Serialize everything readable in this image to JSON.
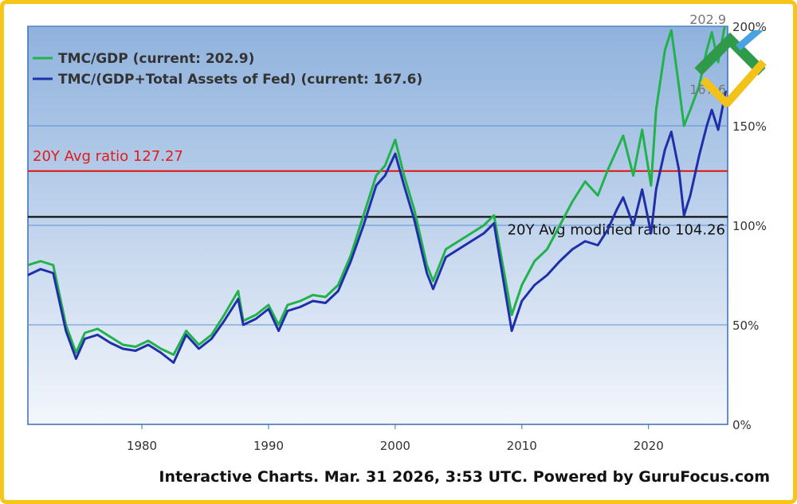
{
  "chart_data": {
    "type": "line",
    "xlabel": "",
    "ylabel": "",
    "xlim": [
      1971,
      2026.25
    ],
    "ylim": [
      0,
      200
    ],
    "x_ticks": [
      1980,
      1990,
      2000,
      2010,
      2020
    ],
    "y_ticks": [
      {
        "value": 0,
        "label": "0%"
      },
      {
        "value": 50,
        "label": "50%"
      },
      {
        "value": 100,
        "label": "100%"
      },
      {
        "value": 150,
        "label": "150%"
      },
      {
        "value": 200,
        "label": "200%"
      }
    ],
    "grid": "horizontal",
    "legend": "top-left",
    "background_gradient": [
      "#8fb2dd",
      "#f3f6fc"
    ],
    "series": [
      {
        "name": "TMC/GDP",
        "legend_label": "TMC/GDP (current: 202.9)",
        "end_label": "202.9",
        "color": "#22b24c",
        "points": [
          [
            1971,
            80
          ],
          [
            1972,
            82
          ],
          [
            1973,
            80
          ],
          [
            1974,
            50
          ],
          [
            1974.8,
            36
          ],
          [
            1975.5,
            46
          ],
          [
            1976.5,
            48
          ],
          [
            1977.5,
            44
          ],
          [
            1978.5,
            40
          ],
          [
            1979.5,
            39
          ],
          [
            1980.5,
            42
          ],
          [
            1981.5,
            38
          ],
          [
            1982.5,
            35
          ],
          [
            1983.5,
            47
          ],
          [
            1984.5,
            40
          ],
          [
            1985.5,
            45
          ],
          [
            1986.5,
            55
          ],
          [
            1987.6,
            67
          ],
          [
            1988,
            52
          ],
          [
            1989,
            55
          ],
          [
            1990,
            60
          ],
          [
            1990.8,
            50
          ],
          [
            1991.5,
            60
          ],
          [
            1992.5,
            62
          ],
          [
            1993.5,
            65
          ],
          [
            1994.5,
            64
          ],
          [
            1995.5,
            70
          ],
          [
            1996.5,
            85
          ],
          [
            1997.5,
            105
          ],
          [
            1998.5,
            125
          ],
          [
            1999.2,
            130
          ],
          [
            2000,
            143
          ],
          [
            2000.7,
            125
          ],
          [
            2001.5,
            108
          ],
          [
            2002.5,
            80
          ],
          [
            2003,
            72
          ],
          [
            2004,
            88
          ],
          [
            2005,
            92
          ],
          [
            2006,
            96
          ],
          [
            2007,
            100
          ],
          [
            2007.8,
            105
          ],
          [
            2008.5,
            80
          ],
          [
            2009.2,
            55
          ],
          [
            2010,
            70
          ],
          [
            2011,
            82
          ],
          [
            2012,
            88
          ],
          [
            2013,
            100
          ],
          [
            2014,
            112
          ],
          [
            2015,
            122
          ],
          [
            2016,
            115
          ],
          [
            2016.8,
            128
          ],
          [
            2017.5,
            138
          ],
          [
            2018,
            145
          ],
          [
            2018.8,
            125
          ],
          [
            2019.5,
            148
          ],
          [
            2020.2,
            120
          ],
          [
            2020.6,
            158
          ],
          [
            2021.3,
            188
          ],
          [
            2021.8,
            198
          ],
          [
            2022.4,
            170
          ],
          [
            2022.8,
            150
          ],
          [
            2023.3,
            158
          ],
          [
            2024,
            170
          ],
          [
            2024.6,
            188
          ],
          [
            2025,
            197
          ],
          [
            2025.5,
            182
          ],
          [
            2026.1,
            202.9
          ]
        ]
      },
      {
        "name": "TMC/(GDP+Total Assets of Fed)",
        "legend_label": "TMC/(GDP+Total Assets of Fed) (current: 167.6)",
        "end_label": "167.6",
        "color": "#1f2fa8",
        "points": [
          [
            1971,
            75
          ],
          [
            1972,
            78
          ],
          [
            1973,
            76
          ],
          [
            1974,
            47
          ],
          [
            1974.8,
            33
          ],
          [
            1975.5,
            43
          ],
          [
            1976.5,
            45
          ],
          [
            1977.5,
            41
          ],
          [
            1978.5,
            38
          ],
          [
            1979.5,
            37
          ],
          [
            1980.5,
            40
          ],
          [
            1981.5,
            36
          ],
          [
            1982.5,
            31
          ],
          [
            1983.5,
            45
          ],
          [
            1984.5,
            38
          ],
          [
            1985.5,
            43
          ],
          [
            1986.5,
            52
          ],
          [
            1987.6,
            63
          ],
          [
            1988,
            50
          ],
          [
            1989,
            53
          ],
          [
            1990,
            58
          ],
          [
            1990.8,
            47
          ],
          [
            1991.5,
            57
          ],
          [
            1992.5,
            59
          ],
          [
            1993.5,
            62
          ],
          [
            1994.5,
            61
          ],
          [
            1995.5,
            67
          ],
          [
            1996.5,
            82
          ],
          [
            1997.5,
            100
          ],
          [
            1998.5,
            120
          ],
          [
            1999.2,
            125
          ],
          [
            2000,
            136
          ],
          [
            2000.7,
            120
          ],
          [
            2001.5,
            103
          ],
          [
            2002.5,
            76
          ],
          [
            2003,
            68
          ],
          [
            2004,
            84
          ],
          [
            2005,
            88
          ],
          [
            2006,
            92
          ],
          [
            2007,
            96
          ],
          [
            2007.8,
            101
          ],
          [
            2008.5,
            74
          ],
          [
            2009.2,
            47
          ],
          [
            2010,
            62
          ],
          [
            2011,
            70
          ],
          [
            2012,
            75
          ],
          [
            2013,
            82
          ],
          [
            2014,
            88
          ],
          [
            2015,
            92
          ],
          [
            2016,
            90
          ],
          [
            2016.8,
            98
          ],
          [
            2017.5,
            108
          ],
          [
            2018,
            114
          ],
          [
            2018.8,
            100
          ],
          [
            2019.5,
            118
          ],
          [
            2020.2,
            96
          ],
          [
            2020.6,
            118
          ],
          [
            2021.3,
            138
          ],
          [
            2021.8,
            147
          ],
          [
            2022.4,
            128
          ],
          [
            2022.8,
            105
          ],
          [
            2023.3,
            115
          ],
          [
            2024,
            135
          ],
          [
            2024.6,
            150
          ],
          [
            2025,
            158
          ],
          [
            2025.5,
            148
          ],
          [
            2026.1,
            167.6
          ]
        ]
      }
    ],
    "reference_lines": [
      {
        "name": "20Y Avg ratio",
        "value": 127.27,
        "label": "20Y Avg ratio 127.27",
        "color": "#e01b1b"
      },
      {
        "name": "20Y Avg modified ratio",
        "value": 104.26,
        "label": "20Y Avg modified ratio 104.26",
        "color": "#111111"
      }
    ]
  },
  "footer": "Interactive Charts. Mar. 31 2026, 3:53 UTC. Powered by GuruFocus.com"
}
